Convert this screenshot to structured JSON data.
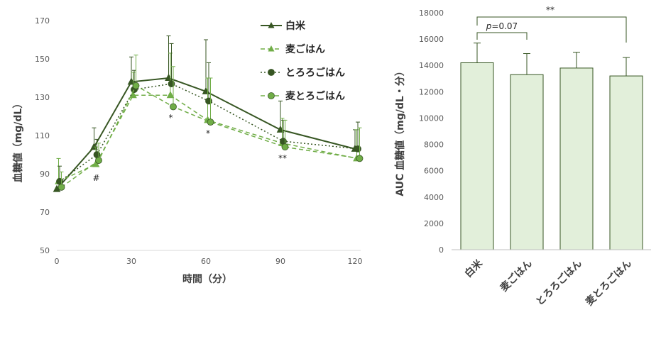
{
  "chart_data": [
    {
      "type": "line",
      "title": "",
      "xlabel": "時間（分）",
      "ylabel": "血糖値（mg/dL）",
      "x": [
        0,
        15,
        30,
        45,
        60,
        90,
        120
      ],
      "xticks": [
        "0",
        "30",
        "60",
        "90",
        "120"
      ],
      "yticks": [
        "50",
        "70",
        "90",
        "110",
        "130",
        "150",
        "170"
      ],
      "xlim": [
        0,
        120
      ],
      "ylim": [
        50,
        170
      ],
      "series": [
        {
          "name": "白米",
          "marker": "triangle",
          "line": "solid",
          "color": "#375623",
          "values": [
            82,
            104,
            138,
            140,
            133,
            113,
            103
          ],
          "err": [
            0,
            10,
            13,
            22,
            27,
            15,
            10
          ]
        },
        {
          "name": "麦ごはん",
          "marker": "triangle",
          "line": "dashed",
          "color": "#70AD47",
          "values": [
            86,
            95,
            131,
            131,
            118,
            106,
            98
          ],
          "err": [
            12,
            9,
            12,
            22,
            22,
            13,
            15
          ]
        },
        {
          "name": "とろろごはん",
          "marker": "circle",
          "line": "dotted",
          "color": "#375623",
          "values": [
            86,
            100,
            134,
            137,
            128,
            107,
            103
          ],
          "err": [
            8,
            8,
            10,
            21,
            20,
            11,
            14
          ]
        },
        {
          "name": "麦とろごはん",
          "marker": "circle",
          "line": "dashed",
          "color": "#70AD47",
          "values": [
            83,
            97,
            136,
            125,
            117,
            104,
            98
          ],
          "err": [
            8,
            9,
            16,
            21,
            23,
            14,
            16
          ]
        }
      ],
      "annotations": [
        {
          "text": "#",
          "x": 15
        },
        {
          "text": "*",
          "x": 45
        },
        {
          "text": "*",
          "x": 60
        },
        {
          "text": "**",
          "x": 90
        }
      ]
    },
    {
      "type": "bar",
      "title": "",
      "xlabel": "",
      "ylabel": "AUC 血糖値（mg/dL・分）",
      "categories": [
        "白米",
        "麦ごはん",
        "とろろごはん",
        "麦とろごはん"
      ],
      "values": [
        14200,
        13300,
        13800,
        13200
      ],
      "err": [
        1500,
        1600,
        1200,
        1400
      ],
      "ylim": [
        0,
        18000
      ],
      "yticks": [
        "0",
        "2000",
        "4000",
        "6000",
        "8000",
        "10000",
        "12000",
        "14000",
        "16000",
        "18000"
      ],
      "bar_color": "#E2EFDA",
      "edge_color": "#375623",
      "brackets": [
        {
          "from": 0,
          "to": 1,
          "label_italic": "p",
          "label_rest": "=0.07"
        },
        {
          "from": 0,
          "to": 3,
          "label": "**"
        }
      ]
    }
  ]
}
